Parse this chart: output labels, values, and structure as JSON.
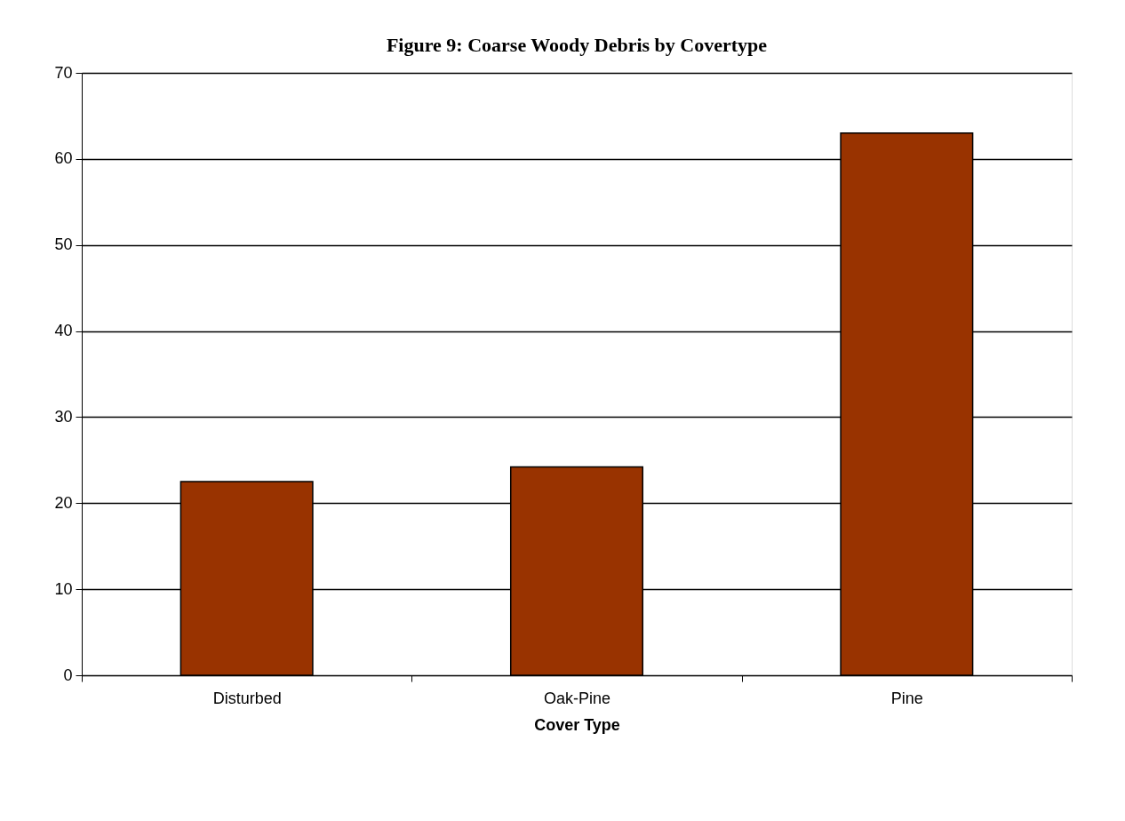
{
  "chart_data": {
    "type": "bar",
    "title": "Figure 9: Coarse Woody Debris by Covertype",
    "xlabel": "Cover Type",
    "categories": [
      "Disturbed",
      "Oak-Pine",
      "Pine"
    ],
    "values": [
      22.5,
      24.2,
      63.0
    ],
    "color": "#993300",
    "ylim": [
      0,
      70
    ],
    "yticks": [
      0,
      10,
      20,
      30,
      40,
      50,
      60,
      70
    ],
    "grid": "y"
  }
}
